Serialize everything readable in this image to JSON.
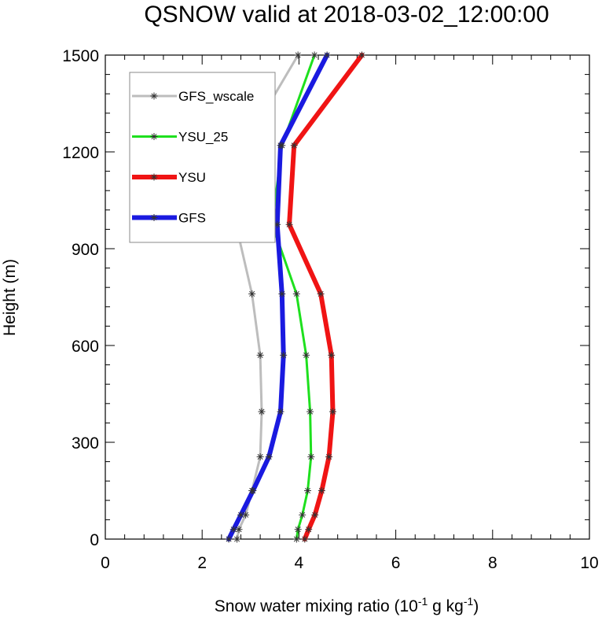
{
  "chart_data": {
    "type": "line",
    "title": "QSNOW valid at 2018-03-02_12:00:00",
    "xlabel": {
      "main": "Snow water mixing ratio (10",
      "sup1": "-1",
      "mid": " g kg",
      "sup2": "-1",
      "end": ")"
    },
    "ylabel": "Height (m)",
    "xlim": [
      0,
      10
    ],
    "ylim": [
      0,
      1500
    ],
    "xticks": [
      0,
      2,
      4,
      6,
      8,
      10
    ],
    "yticks": [
      0,
      300,
      600,
      900,
      1200,
      1500
    ],
    "xtick_labels": [
      "0",
      "2",
      "4",
      "6",
      "8",
      "10"
    ],
    "ytick_labels": [
      "0",
      "300",
      "600",
      "900",
      "1200",
      "1500"
    ],
    "grid": false,
    "legend_position": "top-left",
    "heights": [
      0,
      30,
      75,
      150,
      255,
      395,
      570,
      760,
      975,
      1220,
      1500
    ],
    "series": [
      {
        "name": "GFS_wscale",
        "color": "#bdbdbd",
        "line_width": 3,
        "values": [
          2.72,
          2.76,
          2.9,
          3.03,
          3.2,
          3.23,
          3.2,
          3.03,
          2.7,
          2.88,
          3.98
        ]
      },
      {
        "name": "YSU_25",
        "color": "#1ee01e",
        "line_width": 3,
        "values": [
          3.95,
          3.98,
          4.07,
          4.18,
          4.25,
          4.23,
          4.15,
          3.95,
          3.45,
          3.65,
          4.32
        ]
      },
      {
        "name": "YSU",
        "color": "#f01414",
        "line_width": 6,
        "values": [
          4.12,
          4.2,
          4.33,
          4.47,
          4.62,
          4.7,
          4.67,
          4.45,
          3.8,
          3.9,
          5.3
        ]
      },
      {
        "name": "GFS",
        "color": "#1a1ae0",
        "line_width": 6,
        "values": [
          2.55,
          2.65,
          2.8,
          3.05,
          3.38,
          3.62,
          3.68,
          3.65,
          3.55,
          3.62,
          4.58
        ]
      }
    ]
  }
}
